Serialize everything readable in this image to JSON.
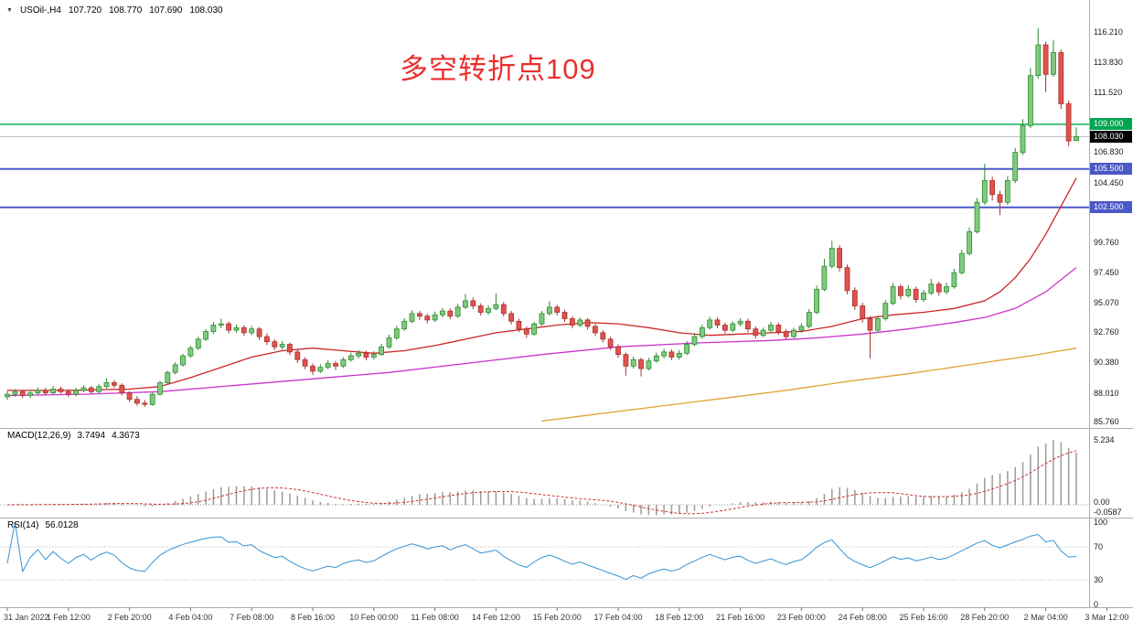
{
  "header": {
    "symbol": "USOil-,H4",
    "open": "107.720",
    "high": "108.770",
    "low": "107.690",
    "close": "108.030"
  },
  "annotation": {
    "text": "多空转折点109",
    "color": "#e8302e"
  },
  "indicators": {
    "macd": {
      "title": "MACD(12,26,9)",
      "value_main": "3.7494",
      "value_signal": "4.3673",
      "axis_labels": [
        "5.234",
        "0.00",
        "-0.0587"
      ],
      "histogram_color": "#9b9b9b",
      "signal_color": "#cc3333",
      "params": {
        "fast": 12,
        "slow": 26,
        "signal": 9
      }
    },
    "rsi": {
      "title": "RSI(14)",
      "value": "56.0128",
      "axis_labels": [
        "100",
        "70",
        "30",
        "0"
      ],
      "levels": [
        70,
        30
      ],
      "line_color": "#3593d6",
      "period": 14
    }
  },
  "price_axis": {
    "plain_labels": [
      {
        "text": "116.210",
        "price": 116.21
      },
      {
        "text": "113.830",
        "price": 113.83
      },
      {
        "text": "111.520",
        "price": 111.52
      },
      {
        "text": "106.830",
        "price": 106.83
      },
      {
        "text": "104.450",
        "price": 104.45
      },
      {
        "text": "99.760",
        "price": 99.76
      },
      {
        "text": "97.450",
        "price": 97.45
      },
      {
        "text": "95.070",
        "price": 95.07
      },
      {
        "text": "92.760",
        "price": 92.76
      },
      {
        "text": "90.380",
        "price": 90.38
      },
      {
        "text": "88.010",
        "price": 88.01
      },
      {
        "text": "85.760",
        "price": 85.76
      }
    ]
  },
  "hlines": [
    {
      "label": "109.000",
      "price": 109.0,
      "color": "#00a550",
      "badge": "#00a550",
      "width": 1.4
    },
    {
      "label": "108.030",
      "price": 108.03,
      "color": "#bcbcbc",
      "badge": "#000000",
      "width": 1
    },
    {
      "label": "105.500",
      "price": 105.5,
      "color": "#4a58c8",
      "badge": "#4a58c8",
      "width": 2
    },
    {
      "label": "102.500",
      "price": 102.5,
      "color": "#4a58c8",
      "badge": "#4a58c8",
      "width": 2
    }
  ],
  "time_axis": {
    "labels": [
      "31 Jan 2022",
      "1 Feb 12:00",
      "2 Feb 20:00",
      "4 Feb 04:00",
      "7 Feb 08:00",
      "8 Feb 16:00",
      "10 Feb 00:00",
      "11 Feb 08:00",
      "14 Feb 12:00",
      "15 Feb 20:00",
      "17 Feb 04:00",
      "18 Feb 12:00",
      "21 Feb 16:00",
      "23 Feb 00:00",
      "24 Feb 08:00",
      "25 Feb 16:00",
      "28 Feb 20:00",
      "2 Mar 04:00",
      "3 Mar 12:00"
    ]
  },
  "chart_data": {
    "type": "candlestick",
    "symbol": "USOil-",
    "timeframe": "H4",
    "ylim": [
      85.76,
      116.21
    ],
    "x_label_step_bars": 8,
    "up_color": "#7fca7f",
    "up_border": "#2e8b2e",
    "down_color": "#e0534b",
    "down_border": "#a83232",
    "ohlc": [
      [
        87.7,
        88.15,
        87.45,
        87.9
      ],
      [
        87.9,
        88.3,
        87.7,
        88.1
      ],
      [
        88.1,
        88.25,
        87.6,
        87.8
      ],
      [
        87.8,
        88.2,
        87.6,
        88.0
      ],
      [
        88.0,
        88.45,
        87.85,
        88.2
      ],
      [
        88.2,
        88.4,
        87.8,
        88.0
      ],
      [
        88.0,
        88.55,
        87.9,
        88.3
      ],
      [
        88.3,
        88.5,
        87.95,
        88.1
      ],
      [
        88.1,
        88.3,
        87.7,
        87.9
      ],
      [
        87.9,
        88.4,
        87.75,
        88.2
      ],
      [
        88.2,
        88.6,
        88.05,
        88.4
      ],
      [
        88.4,
        88.55,
        87.95,
        88.1
      ],
      [
        88.1,
        88.7,
        87.95,
        88.5
      ],
      [
        88.5,
        89.15,
        88.35,
        88.8
      ],
      [
        88.8,
        89.0,
        88.4,
        88.6
      ],
      [
        88.6,
        88.75,
        87.8,
        88.0
      ],
      [
        88.0,
        88.15,
        87.3,
        87.5
      ],
      [
        87.5,
        87.75,
        87.0,
        87.2
      ],
      [
        87.2,
        87.45,
        86.9,
        87.1
      ],
      [
        87.1,
        88.05,
        87.0,
        87.9
      ],
      [
        87.9,
        88.95,
        87.8,
        88.8
      ],
      [
        88.8,
        89.75,
        88.65,
        89.6
      ],
      [
        89.6,
        90.4,
        89.45,
        90.2
      ],
      [
        90.2,
        91.05,
        90.05,
        90.9
      ],
      [
        90.9,
        91.7,
        90.75,
        91.5
      ],
      [
        91.5,
        92.4,
        91.35,
        92.2
      ],
      [
        92.2,
        93.0,
        92.05,
        92.8
      ],
      [
        92.8,
        93.55,
        92.6,
        93.3
      ],
      [
        93.3,
        93.8,
        93.05,
        93.4
      ],
      [
        93.4,
        93.6,
        92.65,
        92.9
      ],
      [
        92.9,
        93.35,
        92.7,
        93.1
      ],
      [
        93.1,
        93.3,
        92.45,
        92.7
      ],
      [
        92.7,
        93.25,
        92.5,
        93.0
      ],
      [
        93.0,
        93.15,
        92.15,
        92.4
      ],
      [
        92.4,
        92.65,
        91.75,
        92.0
      ],
      [
        92.0,
        92.2,
        91.35,
        91.6
      ],
      [
        91.6,
        92.05,
        91.4,
        91.8
      ],
      [
        91.8,
        91.95,
        90.95,
        91.2
      ],
      [
        91.2,
        91.4,
        90.35,
        90.6
      ],
      [
        90.6,
        90.8,
        89.85,
        90.1
      ],
      [
        90.1,
        90.3,
        89.4,
        89.7
      ],
      [
        89.7,
        90.25,
        89.55,
        90.0
      ],
      [
        90.0,
        90.55,
        89.85,
        90.3
      ],
      [
        90.3,
        90.5,
        89.8,
        90.1
      ],
      [
        90.1,
        90.8,
        89.95,
        90.6
      ],
      [
        90.6,
        91.15,
        90.45,
        90.9
      ],
      [
        90.9,
        91.35,
        90.7,
        91.1
      ],
      [
        91.1,
        91.3,
        90.55,
        90.8
      ],
      [
        90.8,
        91.25,
        90.6,
        91.0
      ],
      [
        91.0,
        91.85,
        90.9,
        91.6
      ],
      [
        91.6,
        92.55,
        91.45,
        92.3
      ],
      [
        92.3,
        93.25,
        92.15,
        93.0
      ],
      [
        93.0,
        93.85,
        92.85,
        93.6
      ],
      [
        93.6,
        94.45,
        93.45,
        94.2
      ],
      [
        94.2,
        94.4,
        93.7,
        94.0
      ],
      [
        94.0,
        94.2,
        93.45,
        93.7
      ],
      [
        93.7,
        94.35,
        93.55,
        94.1
      ],
      [
        94.1,
        94.65,
        93.9,
        94.4
      ],
      [
        94.4,
        94.6,
        93.75,
        94.0
      ],
      [
        94.0,
        94.95,
        93.85,
        94.7
      ],
      [
        94.7,
        95.75,
        94.55,
        95.2
      ],
      [
        95.2,
        95.45,
        94.55,
        94.8
      ],
      [
        94.8,
        95.0,
        94.05,
        94.3
      ],
      [
        94.3,
        94.85,
        94.1,
        94.6
      ],
      [
        94.6,
        95.8,
        94.45,
        94.9
      ],
      [
        94.9,
        95.1,
        93.95,
        94.2
      ],
      [
        94.2,
        94.4,
        93.35,
        93.6
      ],
      [
        93.6,
        93.8,
        92.75,
        93.0
      ],
      [
        93.0,
        93.2,
        92.3,
        92.6
      ],
      [
        92.6,
        93.55,
        92.45,
        93.4
      ],
      [
        93.4,
        94.4,
        93.25,
        94.2
      ],
      [
        94.2,
        95.15,
        94.05,
        94.7
      ],
      [
        94.7,
        94.9,
        94.05,
        94.3
      ],
      [
        94.3,
        94.5,
        93.55,
        93.8
      ],
      [
        93.8,
        94.0,
        93.05,
        93.3
      ],
      [
        93.3,
        93.9,
        93.15,
        93.7
      ],
      [
        93.7,
        93.85,
        92.95,
        93.2
      ],
      [
        93.2,
        93.4,
        92.45,
        92.7
      ],
      [
        92.7,
        92.9,
        91.95,
        92.2
      ],
      [
        92.2,
        92.4,
        91.35,
        91.6
      ],
      [
        91.6,
        91.8,
        90.75,
        91.0
      ],
      [
        91.0,
        91.15,
        89.35,
        90.1
      ],
      [
        90.1,
        90.85,
        89.9,
        90.6
      ],
      [
        90.6,
        90.75,
        89.3,
        89.9
      ],
      [
        89.9,
        90.75,
        89.75,
        90.5
      ],
      [
        90.5,
        91.15,
        90.35,
        90.9
      ],
      [
        90.9,
        91.45,
        90.7,
        91.2
      ],
      [
        91.2,
        91.4,
        90.55,
        90.8
      ],
      [
        90.8,
        91.35,
        90.6,
        91.1
      ],
      [
        91.1,
        92.05,
        90.95,
        91.8
      ],
      [
        91.8,
        92.65,
        91.65,
        92.4
      ],
      [
        92.4,
        93.35,
        92.25,
        93.1
      ],
      [
        93.1,
        93.95,
        92.95,
        93.7
      ],
      [
        93.7,
        93.9,
        93.05,
        93.3
      ],
      [
        93.3,
        93.5,
        92.65,
        92.9
      ],
      [
        92.9,
        93.6,
        92.75,
        93.4
      ],
      [
        93.4,
        93.85,
        93.2,
        93.6
      ],
      [
        93.6,
        93.8,
        92.75,
        93.0
      ],
      [
        93.0,
        93.2,
        92.25,
        92.5
      ],
      [
        92.5,
        93.1,
        92.35,
        92.9
      ],
      [
        92.9,
        93.55,
        92.75,
        93.3
      ],
      [
        93.3,
        93.5,
        92.55,
        92.8
      ],
      [
        92.8,
        93.0,
        92.15,
        92.4
      ],
      [
        92.4,
        93.1,
        92.25,
        92.9
      ],
      [
        92.9,
        93.45,
        92.7,
        93.2
      ],
      [
        93.2,
        94.55,
        93.05,
        94.3
      ],
      [
        94.3,
        96.4,
        94.15,
        96.1
      ],
      [
        96.1,
        98.5,
        95.95,
        97.9
      ],
      [
        97.9,
        99.9,
        97.75,
        99.3
      ],
      [
        99.3,
        99.55,
        97.5,
        97.8
      ],
      [
        97.8,
        98.05,
        95.7,
        96.0
      ],
      [
        96.0,
        96.25,
        94.5,
        94.8
      ],
      [
        94.8,
        95.05,
        93.5,
        93.8
      ],
      [
        93.8,
        94.0,
        90.7,
        92.9
      ],
      [
        92.9,
        94.05,
        92.7,
        93.8
      ],
      [
        93.8,
        95.25,
        93.65,
        95.0
      ],
      [
        95.0,
        96.6,
        94.85,
        96.3
      ],
      [
        96.3,
        96.5,
        95.3,
        95.6
      ],
      [
        95.6,
        96.4,
        95.45,
        96.1
      ],
      [
        96.1,
        96.3,
        95.05,
        95.3
      ],
      [
        95.3,
        96.05,
        95.1,
        95.8
      ],
      [
        95.8,
        96.9,
        95.65,
        96.5
      ],
      [
        96.5,
        96.7,
        95.6,
        95.9
      ],
      [
        95.9,
        96.6,
        95.7,
        96.3
      ],
      [
        96.3,
        97.7,
        96.15,
        97.4
      ],
      [
        97.4,
        99.2,
        97.25,
        98.9
      ],
      [
        98.9,
        100.95,
        98.75,
        100.6
      ],
      [
        100.6,
        103.25,
        100.45,
        102.9
      ],
      [
        102.9,
        105.9,
        102.7,
        104.6
      ],
      [
        104.6,
        104.9,
        103.05,
        103.5
      ],
      [
        103.5,
        103.8,
        101.9,
        102.9
      ],
      [
        102.9,
        104.95,
        102.7,
        104.6
      ],
      [
        104.6,
        107.15,
        104.4,
        106.8
      ],
      [
        106.8,
        109.4,
        106.6,
        108.9
      ],
      [
        108.9,
        113.4,
        108.7,
        112.8
      ],
      [
        112.8,
        116.5,
        112.55,
        115.2
      ],
      [
        115.2,
        115.45,
        111.5,
        112.9
      ],
      [
        112.9,
        115.6,
        112.7,
        114.6
      ],
      [
        114.6,
        114.85,
        110.2,
        110.6
      ],
      [
        110.6,
        110.85,
        107.3,
        107.7
      ],
      [
        107.72,
        108.77,
        107.69,
        108.03
      ]
    ],
    "ma_lines": [
      {
        "name": "ma-fast-red",
        "color": "#cc2626",
        "points": [
          [
            0,
            88.2
          ],
          [
            8,
            88.2
          ],
          [
            16,
            88.3
          ],
          [
            20,
            88.5
          ],
          [
            24,
            89.2
          ],
          [
            28,
            90.0
          ],
          [
            32,
            90.8
          ],
          [
            36,
            91.3
          ],
          [
            40,
            91.5
          ],
          [
            44,
            91.3
          ],
          [
            48,
            91.1
          ],
          [
            52,
            91.3
          ],
          [
            56,
            91.7
          ],
          [
            60,
            92.2
          ],
          [
            64,
            92.7
          ],
          [
            68,
            93.0
          ],
          [
            72,
            93.3
          ],
          [
            76,
            93.5
          ],
          [
            80,
            93.4
          ],
          [
            84,
            93.1
          ],
          [
            88,
            92.7
          ],
          [
            92,
            92.5
          ],
          [
            96,
            92.6
          ],
          [
            100,
            92.7
          ],
          [
            104,
            92.8
          ],
          [
            108,
            93.2
          ],
          [
            112,
            93.8
          ],
          [
            116,
            94.1
          ],
          [
            120,
            94.3
          ],
          [
            124,
            94.6
          ],
          [
            128,
            95.2
          ],
          [
            130,
            95.9
          ],
          [
            132,
            97.0
          ],
          [
            134,
            98.5
          ],
          [
            136,
            100.4
          ],
          [
            138,
            102.6
          ],
          [
            140,
            104.8
          ]
        ]
      },
      {
        "name": "ma-mid-magenta",
        "color": "#cc33cc",
        "points": [
          [
            0,
            87.8
          ],
          [
            10,
            87.9
          ],
          [
            20,
            88.1
          ],
          [
            30,
            88.6
          ],
          [
            40,
            89.1
          ],
          [
            50,
            89.6
          ],
          [
            60,
            90.3
          ],
          [
            70,
            91.0
          ],
          [
            80,
            91.6
          ],
          [
            90,
            91.9
          ],
          [
            100,
            92.1
          ],
          [
            106,
            92.3
          ],
          [
            112,
            92.6
          ],
          [
            118,
            93.0
          ],
          [
            124,
            93.5
          ],
          [
            128,
            93.9
          ],
          [
            132,
            94.6
          ],
          [
            136,
            95.9
          ],
          [
            140,
            97.8
          ]
        ]
      },
      {
        "name": "ma-slow-orange",
        "color": "#e0a030",
        "points": [
          [
            70,
            85.8
          ],
          [
            78,
            86.4
          ],
          [
            86,
            87.0
          ],
          [
            94,
            87.6
          ],
          [
            102,
            88.2
          ],
          [
            110,
            88.9
          ],
          [
            118,
            89.5
          ],
          [
            126,
            90.2
          ],
          [
            134,
            90.9
          ],
          [
            140,
            91.5
          ]
        ]
      }
    ]
  }
}
